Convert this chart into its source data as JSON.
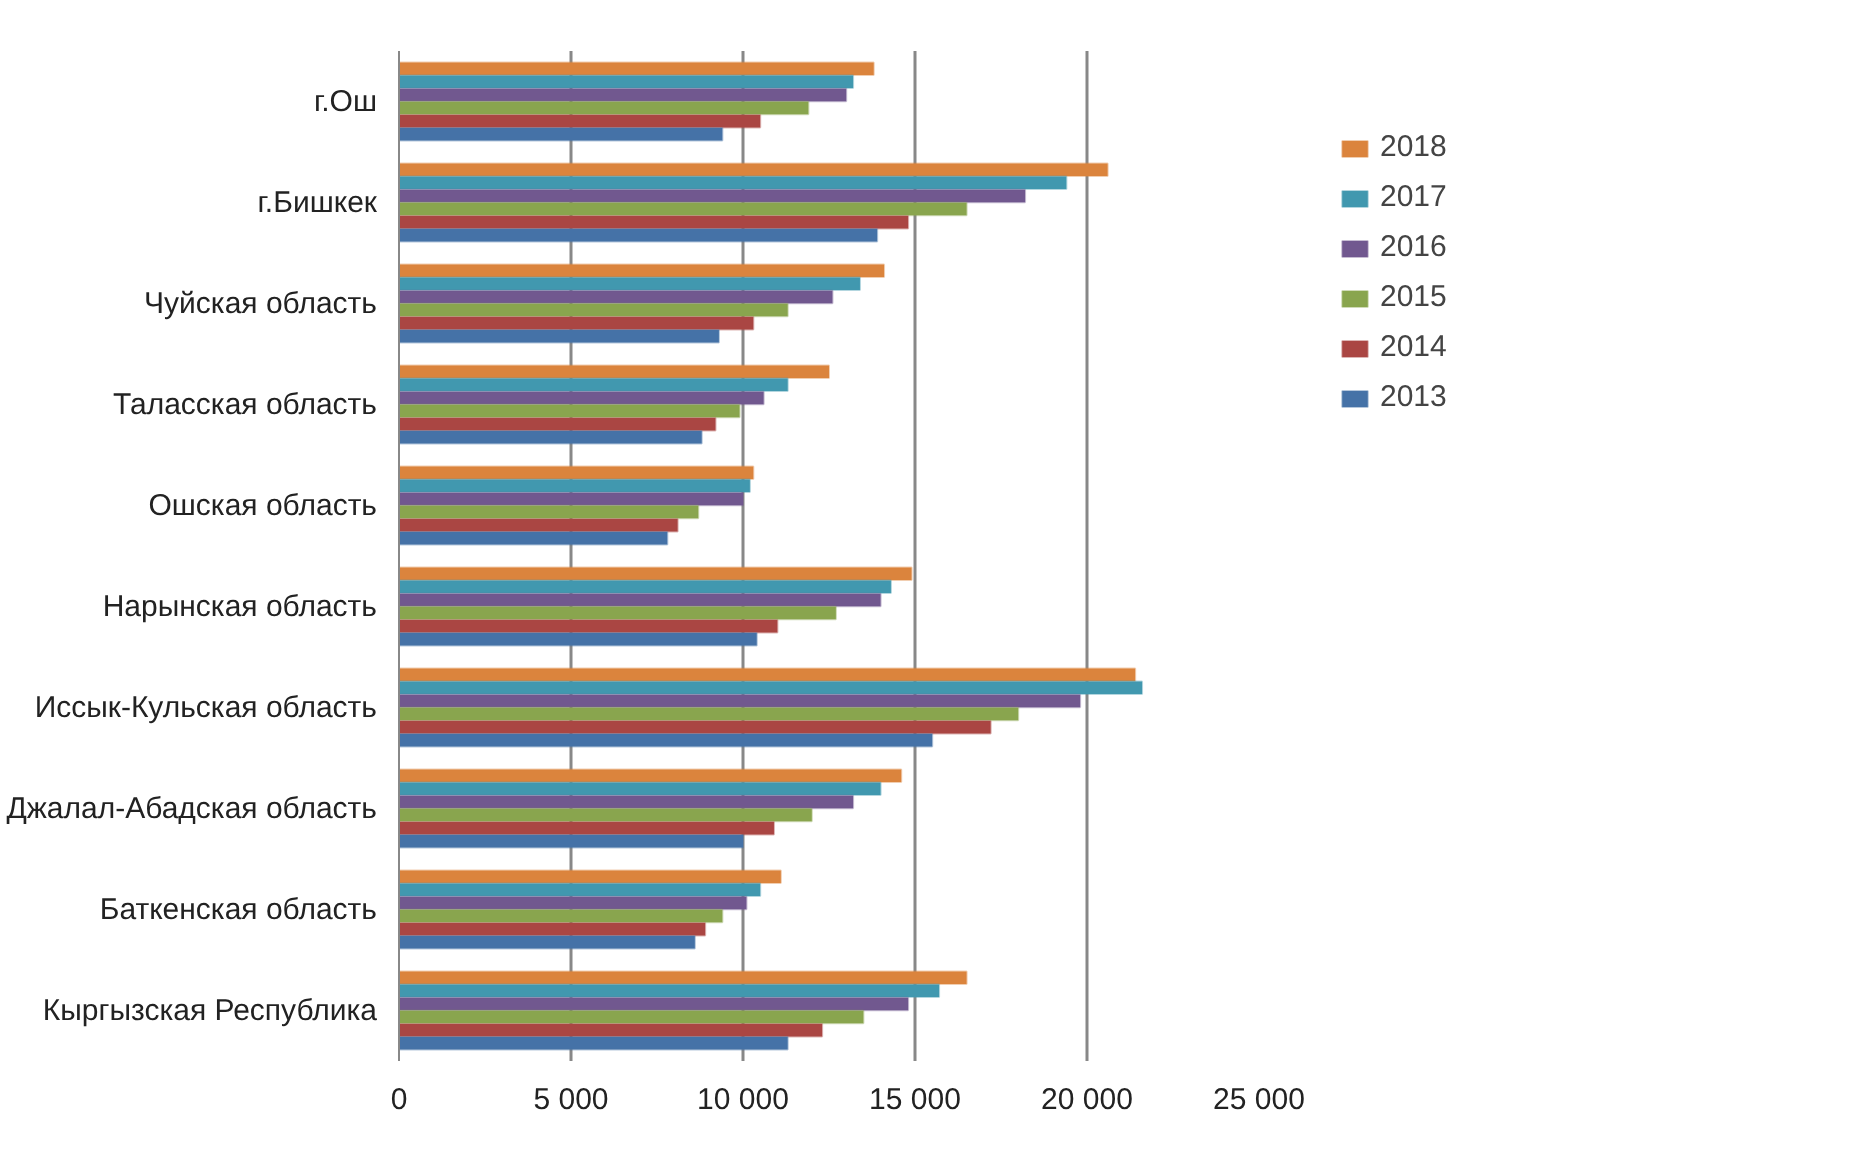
{
  "chart_data": {
    "type": "bar",
    "orientation": "horizontal",
    "categories": [
      "г.Ош",
      "г.Бишкек",
      "Чуйская область",
      "Таласская область",
      "Ошская область",
      "Нарынская область",
      "Иссык-Кульская область",
      "Джалал-Абадская область",
      "Баткенская область",
      "Кыргызская Республика"
    ],
    "series": [
      {
        "name": "2018",
        "color": "#db843d",
        "values": [
          13800,
          20600,
          14100,
          12500,
          10300,
          14900,
          21400,
          14600,
          11100,
          16500
        ]
      },
      {
        "name": "2017",
        "color": "#4198af",
        "values": [
          13200,
          19400,
          13400,
          11300,
          10200,
          14300,
          21600,
          14000,
          10500,
          15700
        ]
      },
      {
        "name": "2016",
        "color": "#71588f",
        "values": [
          13000,
          18200,
          12600,
          10600,
          10000,
          14000,
          19800,
          13200,
          10100,
          14800
        ]
      },
      {
        "name": "2015",
        "color": "#89a54e",
        "values": [
          11900,
          16500,
          11300,
          9900,
          8700,
          12700,
          18000,
          12000,
          9400,
          13500
        ]
      },
      {
        "name": "2014",
        "color": "#aa4643",
        "values": [
          10500,
          14800,
          10300,
          9200,
          8100,
          11000,
          17200,
          10900,
          8900,
          12300
        ]
      },
      {
        "name": "2013",
        "color": "#4572a7",
        "values": [
          9400,
          13900,
          9300,
          8800,
          7800,
          10400,
          15500,
          10000,
          8600,
          11300
        ]
      }
    ],
    "xlim": [
      0,
      25000
    ],
    "xticks": [
      0,
      {
        "value": 5000,
        "label": "5 000"
      },
      {
        "value": 10000,
        "label": "10 000"
      },
      {
        "value": 15000,
        "label": "15 000"
      },
      {
        "value": 20000,
        "label": "20 000"
      },
      {
        "value": 25000,
        "label": "25 000"
      }
    ],
    "grid": "x",
    "legend": "right"
  }
}
